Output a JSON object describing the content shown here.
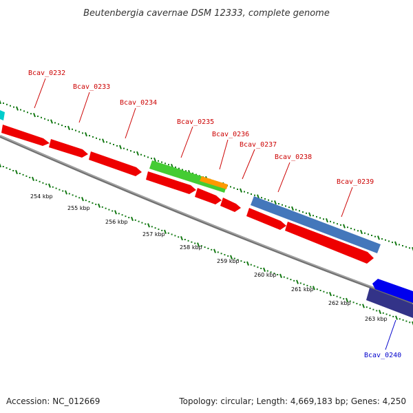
{
  "title": "Beutenbergia cavernae DSM 12333, complete genome",
  "footer": {
    "accession": "Accession: NC_012669",
    "summary": "Topology: circular; Length: 4,669,183 bp; Genes: 4,250"
  },
  "colors": {
    "forward_label": "#cc0000",
    "reverse_label": "#0000cc",
    "cds": "#ee0000",
    "rna": "#44cc33",
    "orange": "#ff9900",
    "steelblue": "#4477bb",
    "blue": "#0000ee",
    "navy": "#333388",
    "cyan": "#00cccc",
    "tick": "#117711",
    "backbone": "#808080"
  },
  "gene_labels": [
    {
      "name": "Bcav_0232",
      "strand": "forward"
    },
    {
      "name": "Bcav_0233",
      "strand": "forward"
    },
    {
      "name": "Bcav_0234",
      "strand": "forward"
    },
    {
      "name": "Bcav_0235",
      "strand": "forward"
    },
    {
      "name": "Bcav_0236",
      "strand": "forward"
    },
    {
      "name": "Bcav_0237",
      "strand": "forward"
    },
    {
      "name": "Bcav_0238",
      "strand": "forward"
    },
    {
      "name": "Bcav_0239",
      "strand": "forward"
    },
    {
      "name": "Bcav_0240",
      "strand": "reverse"
    }
  ],
  "kbp_ticks": [
    "254 kbp",
    "255 kbp",
    "256 kbp",
    "257 kbp",
    "258 kbp",
    "259 kbp",
    "260 kbp",
    "261 kbp",
    "262 kbp",
    "263 kbp"
  ]
}
